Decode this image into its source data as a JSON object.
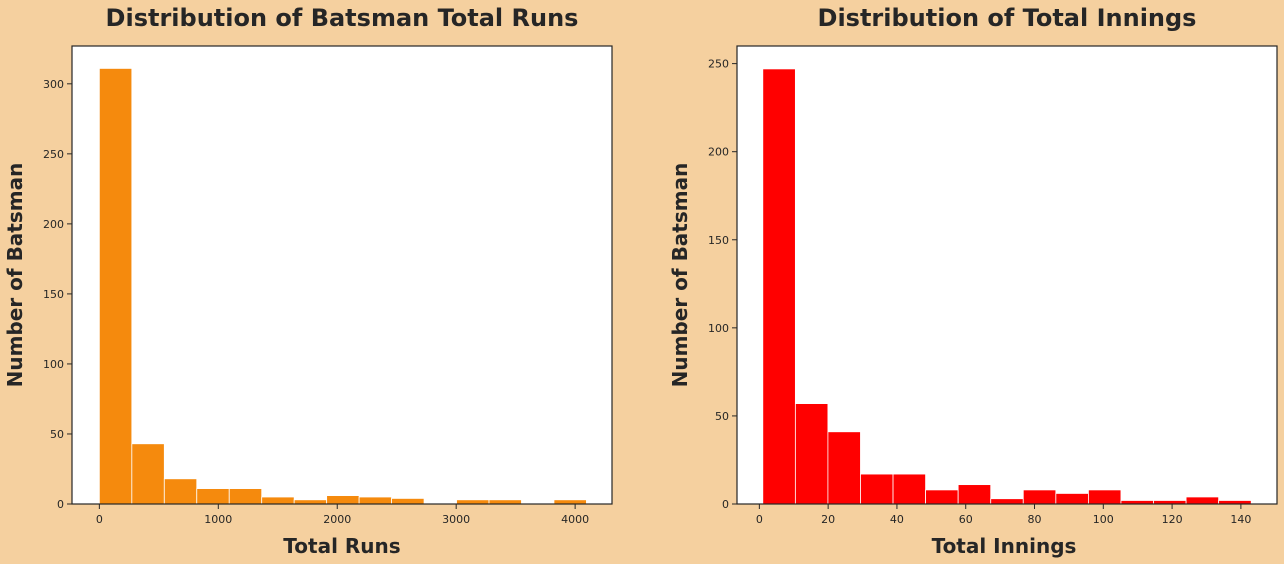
{
  "chart_data": [
    {
      "type": "bar",
      "title": "Distribution of Batsman Total Runs",
      "xlabel": "Total Runs",
      "ylabel": "Number of Batsman",
      "xlim": [
        -230,
        4310
      ],
      "ylim": [
        0,
        327
      ],
      "xticks": [
        0,
        1000,
        2000,
        3000,
        4000
      ],
      "yticks": [
        0,
        50,
        100,
        150,
        200,
        250,
        300
      ],
      "bin_edges": [
        0,
        273,
        546,
        819,
        1092,
        1365,
        1638,
        1911,
        2184,
        2457,
        2730,
        3003,
        3276,
        3549,
        3822,
        4095
      ],
      "values": [
        311,
        43,
        18,
        11,
        11,
        5,
        3,
        6,
        5,
        4,
        0,
        3,
        3,
        0,
        3
      ],
      "color": "#f58a0d",
      "grid": false,
      "legend": "none"
    },
    {
      "type": "bar",
      "title": "Distribution of Total Innings",
      "xlabel": "Total Innings",
      "ylabel": "Number of Batsman",
      "xlim": [
        -6.5,
        150.5
      ],
      "ylim": [
        0,
        260
      ],
      "xticks": [
        0,
        20,
        40,
        60,
        80,
        100,
        120,
        140
      ],
      "yticks": [
        0,
        50,
        100,
        150,
        200,
        250
      ],
      "bin_edges": [
        1,
        10.47,
        19.93,
        29.4,
        38.87,
        48.33,
        57.8,
        67.27,
        76.73,
        86.2,
        95.67,
        105.13,
        114.6,
        124.07,
        133.53,
        143
      ],
      "values": [
        247,
        57,
        41,
        17,
        17,
        8,
        11,
        3,
        8,
        6,
        8,
        2,
        2,
        4,
        2
      ],
      "color": "#ff0000",
      "grid": false,
      "legend": "none"
    }
  ]
}
